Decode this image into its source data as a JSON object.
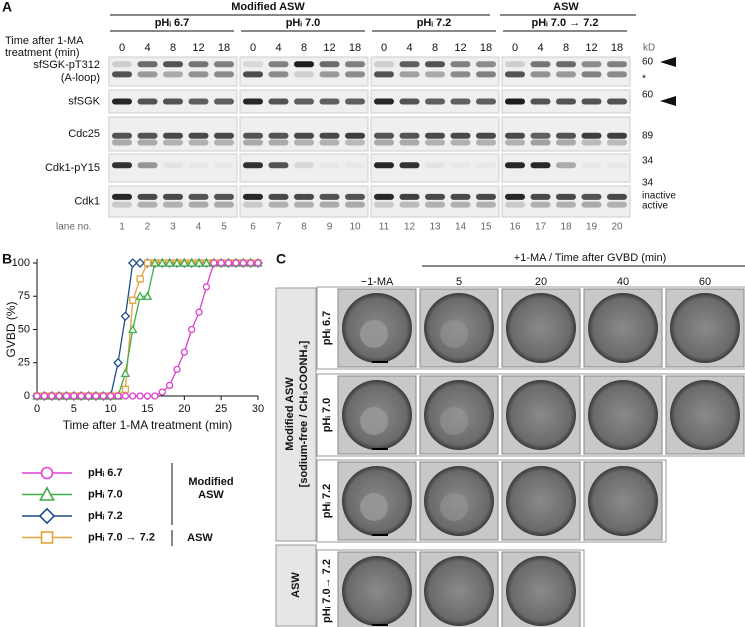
{
  "panels": {
    "a": "A",
    "b": "B",
    "c": "C"
  },
  "blot": {
    "group_headers": [
      "Modified ASW",
      "ASW"
    ],
    "conditions": [
      "pHᵢ 6.7",
      "pHᵢ 7.0",
      "pHᵢ 7.2",
      "pHᵢ 7.0 → 7.2"
    ],
    "time_label": [
      "Time after 1-MA",
      "treatment (min)"
    ],
    "times": [
      0,
      4,
      8,
      12,
      18
    ],
    "kd_label": "kD",
    "rows": [
      {
        "label": [
          "sfSGK-pT312",
          "(A-loop)"
        ],
        "markers": [
          "60",
          "*"
        ]
      },
      {
        "label": [
          "sfSGK"
        ],
        "markers": [
          "60"
        ]
      },
      {
        "label": [
          "Cdc25"
        ],
        "markers": [
          "89"
        ]
      },
      {
        "label": [
          "Cdk1-pY15"
        ],
        "markers": [
          "34"
        ]
      },
      {
        "label": [
          "Cdk1"
        ],
        "markers": [
          "34",
          "inactive",
          "active"
        ]
      }
    ],
    "lane_label": "lane no.",
    "lanes": [
      1,
      2,
      3,
      4,
      5,
      6,
      7,
      8,
      9,
      10,
      11,
      12,
      13,
      14,
      15,
      16,
      17,
      18,
      19,
      20
    ]
  },
  "chart_data": {
    "type": "line",
    "x_label": "Time after 1-MA treatment (min)",
    "y_label": "GVBD (%)",
    "x": [
      0,
      1,
      2,
      3,
      4,
      5,
      6,
      7,
      8,
      9,
      10,
      11,
      12,
      13,
      14,
      15,
      16,
      17,
      18,
      19,
      20,
      21,
      22,
      23,
      24,
      25,
      26,
      27,
      28,
      29,
      30
    ],
    "xlim": [
      0,
      30
    ],
    "xticks": [
      0,
      5,
      10,
      15,
      20,
      25,
      30
    ],
    "ylim": [
      0,
      100
    ],
    "yticks": [
      0,
      25,
      50,
      75,
      100
    ],
    "series": [
      {
        "name": "pHᵢ 7.2",
        "color": "#1f4e8c",
        "marker": "diamond",
        "values": [
          0,
          0,
          0,
          0,
          0,
          0,
          0,
          0,
          0,
          0,
          0,
          25,
          60,
          100,
          100,
          100,
          100,
          100,
          100,
          100,
          100,
          100,
          100,
          100,
          100,
          100,
          100,
          100,
          100,
          100,
          100
        ]
      },
      {
        "name": "pHᵢ 7.0 → 7.2",
        "color": "#e8a23a",
        "marker": "square",
        "values": [
          0,
          0,
          0,
          0,
          0,
          0,
          0,
          0,
          0,
          0,
          0,
          0,
          5,
          72,
          88,
          100,
          100,
          100,
          100,
          100,
          100,
          100,
          100,
          100,
          100,
          100,
          100,
          100,
          100,
          100,
          100
        ]
      },
      {
        "name": "pHᵢ 7.0",
        "color": "#3fae49",
        "marker": "triangle",
        "values": [
          0,
          0,
          0,
          0,
          0,
          0,
          0,
          0,
          0,
          0,
          0,
          0,
          17,
          50,
          75,
          75,
          100,
          100,
          100,
          100,
          100,
          100,
          100,
          100,
          100,
          100,
          100,
          100,
          100,
          100,
          100
        ]
      },
      {
        "name": "pHᵢ 6.7",
        "color": "#e040d0",
        "marker": "circle",
        "values": [
          0,
          0,
          0,
          0,
          0,
          0,
          0,
          0,
          0,
          0,
          0,
          0,
          0,
          0,
          0,
          0,
          0,
          3,
          8,
          20,
          33,
          50,
          63,
          82,
          100,
          100,
          100,
          100,
          100,
          100,
          100
        ]
      }
    ],
    "legend_order": [
      3,
      2,
      0,
      1
    ],
    "legend_groups": [
      [
        "Modified",
        "ASW"
      ],
      [
        "ASW"
      ]
    ]
  },
  "microscopy": {
    "header": "+1-MA  /  Time after GVBD (min)",
    "columns": [
      "−1-MA",
      "5",
      "20",
      "40",
      "60"
    ],
    "rows": [
      "pHᵢ 6.7",
      "pHᵢ 7.0",
      "pHᵢ 7.2",
      "pHᵢ 7.0→ 7.2"
    ],
    "groups": [
      [
        "Modified ASW",
        "[sodium-free / CH₃COONH₄]"
      ],
      [
        "ASW"
      ]
    ]
  }
}
